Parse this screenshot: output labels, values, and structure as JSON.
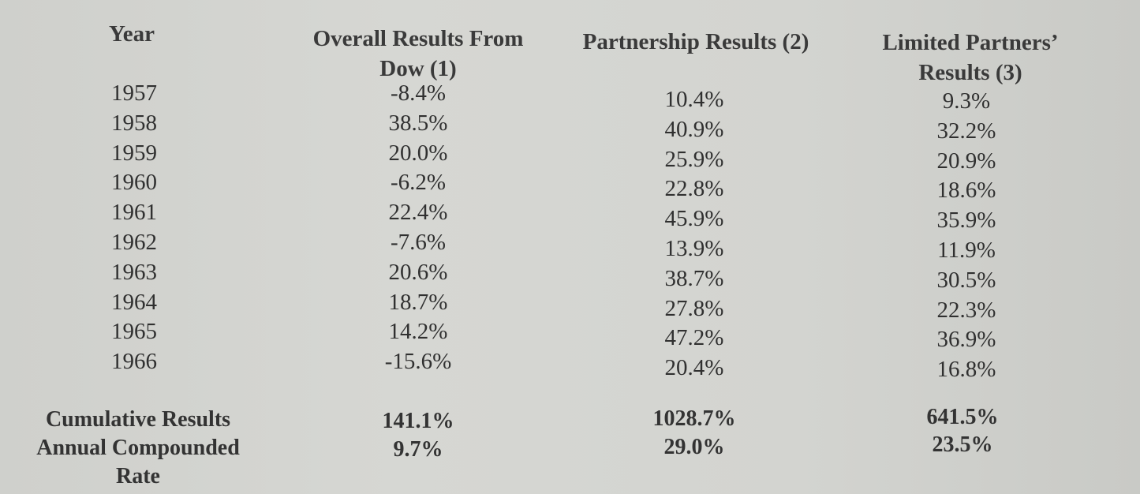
{
  "headers": {
    "year": "Year",
    "dow_line1": "Overall Results From",
    "dow_line2": "Dow (1)",
    "partnership": "Partnership Results (2)",
    "lp_line1": "Limited Partners’",
    "lp_line2": "Results (3)"
  },
  "rows": [
    {
      "year": "1957",
      "dow": "-8.4%",
      "partnership": "10.4%",
      "lp": "9.3%"
    },
    {
      "year": "1958",
      "dow": "38.5%",
      "partnership": "40.9%",
      "lp": "32.2%"
    },
    {
      "year": "1959",
      "dow": "20.0%",
      "partnership": "25.9%",
      "lp": "20.9%"
    },
    {
      "year": "1960",
      "dow": "-6.2%",
      "partnership": "22.8%",
      "lp": "18.6%"
    },
    {
      "year": "1961",
      "dow": "22.4%",
      "partnership": "45.9%",
      "lp": "35.9%"
    },
    {
      "year": "1962",
      "dow": "-7.6%",
      "partnership": "13.9%",
      "lp": "11.9%"
    },
    {
      "year": "1963",
      "dow": "20.6%",
      "partnership": "38.7%",
      "lp": "30.5%"
    },
    {
      "year": "1964",
      "dow": "18.7%",
      "partnership": "27.8%",
      "lp": "22.3%"
    },
    {
      "year": "1965",
      "dow": "14.2%",
      "partnership": "47.2%",
      "lp": "36.9%"
    },
    {
      "year": "1966",
      "dow": "-15.6%",
      "partnership": "20.4%",
      "lp": "16.8%"
    }
  ],
  "summary": {
    "cumulative_label": "Cumulative Results",
    "annual_label_line1": "Annual Compounded",
    "annual_label_line2": "Rate",
    "cumulative": {
      "dow": "141.1%",
      "partnership": "1028.7%",
      "lp": "641.5%"
    },
    "annual": {
      "dow": "9.7%",
      "partnership": "29.0%",
      "lp": "23.5%"
    }
  }
}
